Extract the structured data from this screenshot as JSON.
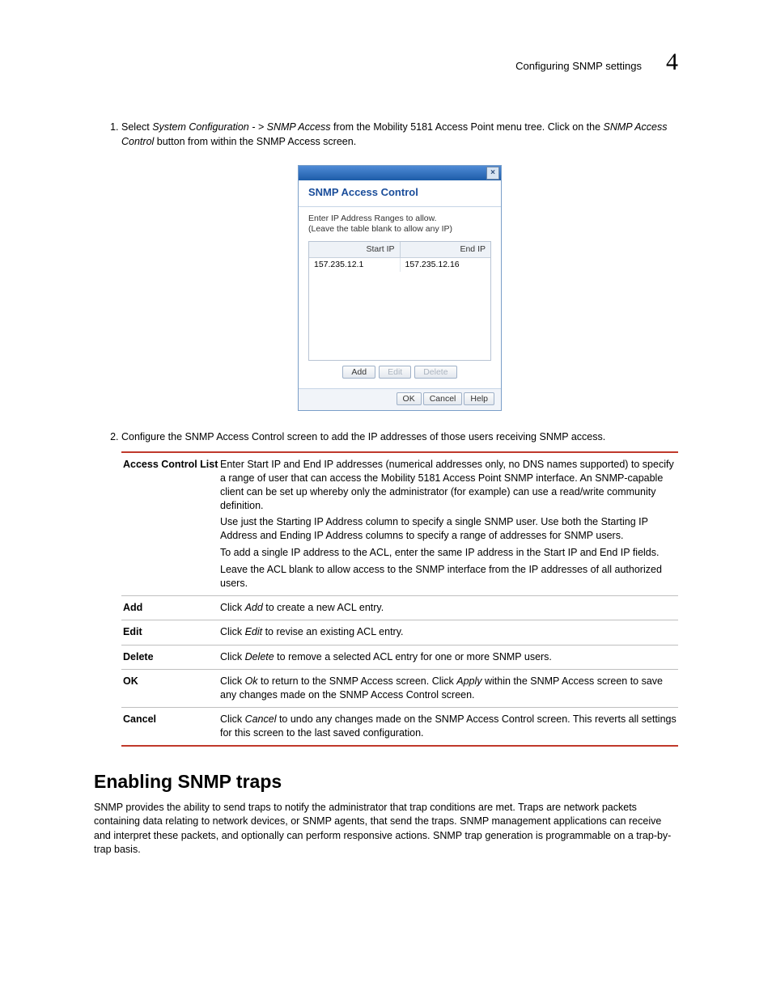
{
  "header": {
    "text": "Configuring SNMP settings",
    "chapter_number": "4"
  },
  "steps": {
    "s1": {
      "pre": "Select ",
      "em1": "System Configuration - > SNMP Access",
      "mid1": " from the Mobility 5181 Access Point menu tree. Click on the ",
      "em2": "SNMP Access Control",
      "post": " button from within the SNMP Access screen."
    },
    "s2": {
      "text": "Configure the SNMP Access Control screen to add the IP addresses of those users receiving SNMP access."
    }
  },
  "dialog": {
    "title": "SNMP Access Control",
    "sub1": "Enter IP Address Ranges to allow.",
    "sub2": "(Leave the table blank to allow any IP)",
    "col_start": "Start IP",
    "col_end": "End IP",
    "row_start": "157.235.12.1",
    "row_end": "157.235.12.16",
    "btn_add": "Add",
    "btn_edit": "Edit",
    "btn_delete": "Delete",
    "btn_ok": "OK",
    "btn_cancel": "Cancel",
    "btn_help": "Help",
    "close_glyph": "×"
  },
  "ref": {
    "acl": {
      "term": "Access Control List",
      "p1": "Enter Start IP and End IP addresses (numerical addresses only, no DNS names supported) to specify a range of user that can access the Mobility 5181 Access Point SNMP interface. An SNMP-capable client can be set up whereby only the administrator (for example) can use a read/write community definition.",
      "p2": "Use just the Starting IP Address column to specify a single SNMP user. Use both the Starting IP Address and Ending IP Address columns to specify a range of addresses for SNMP users.",
      "p3": "To add a single IP address to the ACL, enter the same IP address in the Start IP and End IP fields.",
      "p4": "Leave the ACL blank to allow access to the SNMP interface from the IP addresses of all authorized users."
    },
    "add": {
      "term": "Add",
      "pre": "Click ",
      "em": "Add",
      "post": " to create a new ACL entry."
    },
    "edit": {
      "term": "Edit",
      "pre": "Click ",
      "em": "Edit",
      "post": " to revise an existing ACL entry."
    },
    "delete": {
      "term": "Delete",
      "pre": "Click ",
      "em": "Delete",
      "post": " to remove a selected ACL entry for one or more SNMP users."
    },
    "ok": {
      "term": "OK",
      "pre": "Click ",
      "em1": "Ok",
      "mid": " to return to the SNMP Access screen. Click ",
      "em2": "Apply",
      "post": " within the SNMP Access screen to save any changes made on the SNMP Access Control screen."
    },
    "cancel": {
      "term": "Cancel",
      "pre": "Click ",
      "em": "Cancel",
      "post": " to undo any changes made on the SNMP Access Control screen. This reverts all settings for this screen to the last saved configuration."
    }
  },
  "section": {
    "heading": "Enabling SNMP traps",
    "body": "SNMP provides the ability to send traps to notify the administrator that trap conditions are met. Traps are network packets containing data relating to network devices, or SNMP agents, that send the traps. SNMP management applications can receive and interpret these packets, and optionally can perform responsive actions. SNMP trap generation is programmable on a trap-by-trap basis."
  },
  "colors": {
    "rule_red": "#c0392b",
    "dialog_title_blue": "#1a4d9a",
    "titlebar_grad_top": "#4f8bd6",
    "titlebar_grad_bottom": "#1d5ca8"
  }
}
